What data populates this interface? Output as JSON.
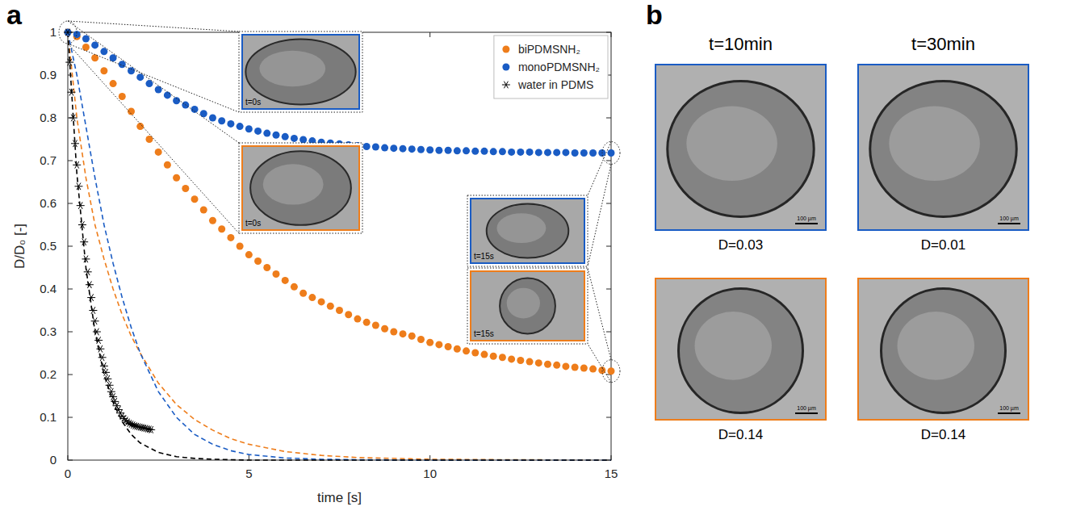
{
  "chart_data": {
    "type": "scatter",
    "x_label": "time [s]",
    "y_label": "D/D₀ [-]",
    "xlim": [
      0,
      15
    ],
    "ylim": [
      0,
      1
    ],
    "xticks": [
      0,
      5,
      10,
      15
    ],
    "yticks": [
      0,
      0.1,
      0.2,
      0.3,
      0.4,
      0.5,
      0.6,
      0.7,
      0.8,
      0.9,
      1
    ],
    "grid": false,
    "legend": "upper right",
    "series": [
      {
        "name": "biPDMSNH₂",
        "type": "scatter",
        "marker": "circle",
        "color": "#ee7d1b",
        "x": [
          0,
          0.25,
          0.5,
          0.75,
          1,
          1.25,
          1.5,
          1.75,
          2,
          2.25,
          2.5,
          2.75,
          3,
          3.25,
          3.5,
          3.75,
          4,
          4.25,
          4.5,
          4.75,
          5,
          5.25,
          5.5,
          5.75,
          6,
          6.25,
          6.5,
          6.75,
          7,
          7.25,
          7.5,
          7.75,
          8,
          8.25,
          8.5,
          8.75,
          9,
          9.25,
          9.5,
          9.75,
          10,
          10.25,
          10.5,
          10.75,
          11,
          11.25,
          11.5,
          11.75,
          12,
          12.25,
          12.5,
          12.75,
          13,
          13.25,
          13.5,
          13.75,
          14,
          14.25,
          14.5,
          14.75,
          15
        ],
        "values": [
          1,
          0.99,
          0.965,
          0.94,
          0.91,
          0.88,
          0.85,
          0.815,
          0.78,
          0.75,
          0.72,
          0.69,
          0.66,
          0.635,
          0.61,
          0.585,
          0.56,
          0.54,
          0.52,
          0.5,
          0.48,
          0.465,
          0.45,
          0.435,
          0.42,
          0.405,
          0.39,
          0.38,
          0.37,
          0.36,
          0.35,
          0.34,
          0.33,
          0.322,
          0.315,
          0.307,
          0.3,
          0.295,
          0.29,
          0.282,
          0.275,
          0.27,
          0.265,
          0.26,
          0.255,
          0.251,
          0.247,
          0.243,
          0.24,
          0.236,
          0.233,
          0.23,
          0.227,
          0.224,
          0.222,
          0.219,
          0.217,
          0.215,
          0.213,
          0.21,
          0.208
        ]
      },
      {
        "name": "monoPDMSNH₂",
        "type": "scatter",
        "marker": "circle",
        "color": "#1a5cc4",
        "x": [
          0,
          0.25,
          0.5,
          0.75,
          1,
          1.25,
          1.5,
          1.75,
          2,
          2.25,
          2.5,
          2.75,
          3,
          3.25,
          3.5,
          3.75,
          4,
          4.25,
          4.5,
          4.75,
          5,
          5.25,
          5.5,
          5.75,
          6,
          6.25,
          6.5,
          6.75,
          7,
          7.25,
          7.5,
          7.75,
          8,
          8.25,
          8.5,
          8.75,
          9,
          9.25,
          9.5,
          9.75,
          10,
          10.25,
          10.5,
          10.75,
          11,
          11.25,
          11.5,
          11.75,
          12,
          12.25,
          12.5,
          12.75,
          13,
          13.25,
          13.5,
          13.75,
          14,
          14.25,
          14.5,
          14.75,
          15
        ],
        "values": [
          1,
          0.995,
          0.985,
          0.97,
          0.955,
          0.94,
          0.925,
          0.91,
          0.895,
          0.88,
          0.866,
          0.853,
          0.84,
          0.83,
          0.82,
          0.81,
          0.8,
          0.793,
          0.786,
          0.78,
          0.774,
          0.769,
          0.764,
          0.76,
          0.756,
          0.752,
          0.749,
          0.746,
          0.743,
          0.741,
          0.739,
          0.737,
          0.735,
          0.733,
          0.732,
          0.73,
          0.729,
          0.728,
          0.727,
          0.726,
          0.725,
          0.724,
          0.724,
          0.723,
          0.723,
          0.722,
          0.722,
          0.721,
          0.721,
          0.72,
          0.72,
          0.72,
          0.719,
          0.719,
          0.719,
          0.719,
          0.718,
          0.718,
          0.718,
          0.718,
          0.718
        ]
      },
      {
        "name": "water in PDMS",
        "type": "scatter",
        "marker": "star",
        "color": "#000000",
        "x": [
          0,
          0.05,
          0.1,
          0.15,
          0.2,
          0.25,
          0.3,
          0.35,
          0.4,
          0.45,
          0.5,
          0.55,
          0.6,
          0.65,
          0.7,
          0.75,
          0.8,
          0.85,
          0.9,
          0.95,
          1,
          1.05,
          1.1,
          1.15,
          1.2,
          1.25,
          1.3,
          1.35,
          1.4,
          1.45,
          1.5,
          1.55,
          1.6,
          1.65,
          1.7,
          1.75,
          1.8,
          1.85,
          1.9,
          1.95,
          2,
          2.05,
          2.1,
          2.15,
          2.2,
          2.25,
          2.3
        ],
        "values": [
          1,
          0.93,
          0.86,
          0.8,
          0.74,
          0.69,
          0.64,
          0.595,
          0.55,
          0.51,
          0.47,
          0.44,
          0.41,
          0.38,
          0.35,
          0.325,
          0.3,
          0.28,
          0.26,
          0.24,
          0.22,
          0.205,
          0.19,
          0.175,
          0.16,
          0.148,
          0.137,
          0.127,
          0.118,
          0.11,
          0.103,
          0.097,
          0.093,
          0.089,
          0.086,
          0.084,
          0.082,
          0.08,
          0.079,
          0.078,
          0.077,
          0.076,
          0.075,
          0.074,
          0.073,
          0.072,
          0.071
        ]
      },
      {
        "type": "line",
        "line_style": "dashed",
        "color": "#ee7d1b",
        "x": [
          0,
          0.25,
          0.5,
          0.75,
          1,
          1.25,
          1.5,
          1.75,
          2,
          2.5,
          3,
          3.5,
          4,
          4.5,
          5,
          6,
          7,
          8,
          10,
          12,
          15
        ],
        "values": [
          1,
          0.8,
          0.66,
          0.55,
          0.47,
          0.4,
          0.34,
          0.29,
          0.25,
          0.18,
          0.13,
          0.095,
          0.07,
          0.05,
          0.037,
          0.02,
          0.011,
          0.006,
          0.002,
          0.001,
          0
        ]
      },
      {
        "type": "line",
        "line_style": "dashed",
        "color": "#1a5cc4",
        "x": [
          0,
          0.25,
          0.5,
          0.75,
          1,
          1.25,
          1.5,
          1.75,
          2,
          2.5,
          3,
          3.5,
          4,
          4.5,
          5,
          6,
          7,
          8,
          10,
          12,
          15
        ],
        "values": [
          1,
          0.9,
          0.78,
          0.66,
          0.55,
          0.46,
          0.38,
          0.31,
          0.25,
          0.16,
          0.1,
          0.06,
          0.037,
          0.022,
          0.013,
          0.005,
          0.002,
          0.001,
          0,
          0,
          0
        ]
      },
      {
        "type": "line",
        "line_style": "dashed",
        "color": "#000000",
        "x": [
          0,
          0.25,
          0.5,
          0.75,
          1,
          1.25,
          1.5,
          1.75,
          2,
          2.5,
          3,
          3.5,
          4,
          4.5,
          5,
          6,
          7,
          8,
          10,
          12,
          15
        ],
        "values": [
          1,
          0.67,
          0.45,
          0.3,
          0.2,
          0.135,
          0.09,
          0.06,
          0.04,
          0.018,
          0.008,
          0.004,
          0.002,
          0.001,
          0,
          0,
          0,
          0,
          0,
          0,
          0
        ]
      }
    ],
    "annotations": [
      {
        "text": "t=0s",
        "x": 0,
        "series": "monoPDMSNH₂"
      },
      {
        "text": "t=0s",
        "x": 0,
        "series": "biPDMSNH₂"
      },
      {
        "text": "t=15s",
        "x": 15,
        "series": "monoPDMSNH₂"
      },
      {
        "text": "t=15s",
        "x": 15,
        "series": "biPDMSNH₂"
      }
    ]
  },
  "panels": [
    {
      "letter": "a"
    },
    {
      "letter": "b",
      "columns": [
        "t=10min",
        "t=30min"
      ],
      "rows": [
        {
          "color": "#1a5cc4",
          "captions": [
            "D=0.03",
            "D=0.01"
          ]
        },
        {
          "color": "#ee7d1b",
          "captions": [
            "D=0.14",
            "D=0.14"
          ]
        }
      ],
      "scale_bar": "100 µm"
    }
  ]
}
